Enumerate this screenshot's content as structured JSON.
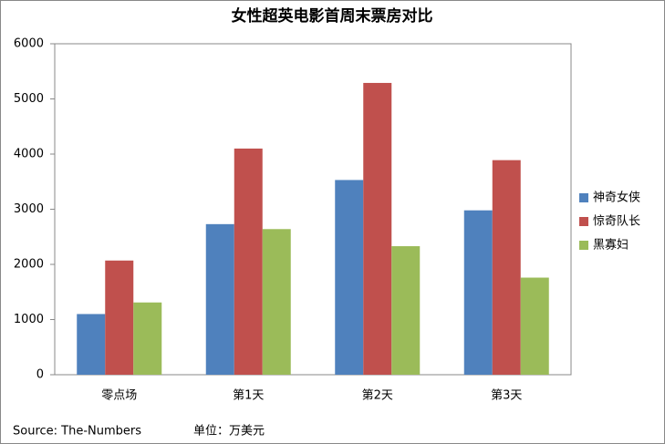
{
  "chart_data": {
    "type": "bar",
    "title": "女性超英电影首周末票房对比",
    "categories": [
      "零点场",
      "第1天",
      "第2天",
      "第3天"
    ],
    "series": [
      {
        "name": "神奇女侠",
        "color": "#4f81bd",
        "values": [
          1100,
          2730,
          3530,
          2980
        ]
      },
      {
        "name": "惊奇队长",
        "color": "#c0504d",
        "values": [
          2070,
          4100,
          5290,
          3890
        ]
      },
      {
        "name": "黑寡妇",
        "color": "#9bbb59",
        "values": [
          1310,
          2640,
          2330,
          1760
        ]
      }
    ],
    "ylim": [
      0,
      6000
    ],
    "yticks": [
      0,
      1000,
      2000,
      3000,
      4000,
      5000,
      6000
    ],
    "grid": false,
    "legend": "right",
    "source": "Source:  The-Numbers",
    "unit": "单位：万美元"
  }
}
